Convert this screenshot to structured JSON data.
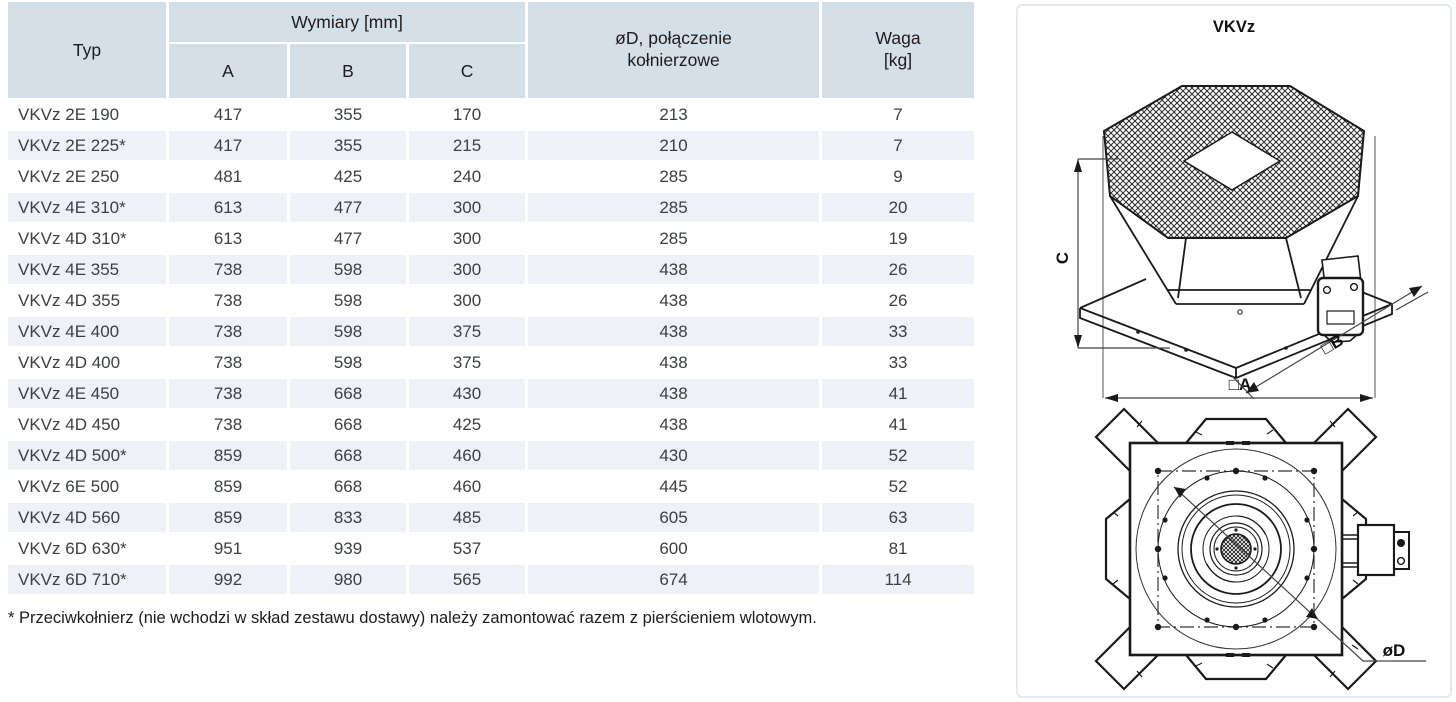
{
  "table": {
    "header": {
      "typ": "Typ",
      "dims_group": "Wymiary [mm]",
      "a": "A",
      "b": "B",
      "c": "C",
      "diameter": "øD, połączenie kołnierzowe",
      "weight": "Waga [kg]"
    },
    "rows": [
      {
        "typ": "VKVz 2E 190",
        "a": "417",
        "b": "355",
        "c": "170",
        "d": "213",
        "waga": "7"
      },
      {
        "typ": "VKVz 2E 225*",
        "a": "417",
        "b": "355",
        "c": "215",
        "d": "210",
        "waga": "7"
      },
      {
        "typ": "VKVz 2E 250",
        "a": "481",
        "b": "425",
        "c": "240",
        "d": "285",
        "waga": "9"
      },
      {
        "typ": "VKVz 4E 310*",
        "a": "613",
        "b": "477",
        "c": "300",
        "d": "285",
        "waga": "20"
      },
      {
        "typ": "VKVz 4D 310*",
        "a": "613",
        "b": "477",
        "c": "300",
        "d": "285",
        "waga": "19"
      },
      {
        "typ": "VKVz 4E 355",
        "a": "738",
        "b": "598",
        "c": "300",
        "d": "438",
        "waga": "26"
      },
      {
        "typ": "VKVz 4D 355",
        "a": "738",
        "b": "598",
        "c": "300",
        "d": "438",
        "waga": "26"
      },
      {
        "typ": "VKVz 4E 400",
        "a": "738",
        "b": "598",
        "c": "375",
        "d": "438",
        "waga": "33"
      },
      {
        "typ": "VKVz 4D 400",
        "a": "738",
        "b": "598",
        "c": "375",
        "d": "438",
        "waga": "33"
      },
      {
        "typ": "VKVz 4E 450",
        "a": "738",
        "b": "668",
        "c": "430",
        "d": "438",
        "waga": "41"
      },
      {
        "typ": "VKVz 4D 450",
        "a": "738",
        "b": "668",
        "c": "425",
        "d": "438",
        "waga": "41"
      },
      {
        "typ": "VKVz 4D 500*",
        "a": "859",
        "b": "668",
        "c": "460",
        "d": "430",
        "waga": "52"
      },
      {
        "typ": "VKVz 6E 500",
        "a": "859",
        "b": "668",
        "c": "460",
        "d": "445",
        "waga": "52"
      },
      {
        "typ": "VKVz 4D 560",
        "a": "859",
        "b": "833",
        "c": "485",
        "d": "605",
        "waga": "63"
      },
      {
        "typ": "VKVz 6D 630*",
        "a": "951",
        "b": "939",
        "c": "537",
        "d": "600",
        "waga": "81"
      },
      {
        "typ": "VKVz 6D 710*",
        "a": "992",
        "b": "980",
        "c": "565",
        "d": "674",
        "waga": "114"
      }
    ],
    "footnote": "* Przeciwkołnierz (nie wchodzi w skład zestawu dostawy) należy zamontować razem z pierścieniem wlotowym."
  },
  "panel": {
    "title": "VKVz",
    "labels": {
      "c": "C",
      "b": "□B",
      "a": "□A",
      "d": "øD"
    }
  },
  "colors": {
    "header_bg": "#d5dfe7",
    "row_alt_bg": "#eef2f6",
    "panel_border": "#e4e9ef",
    "drawing_line": "#1a1a1a",
    "body_text": "#3c4043"
  }
}
